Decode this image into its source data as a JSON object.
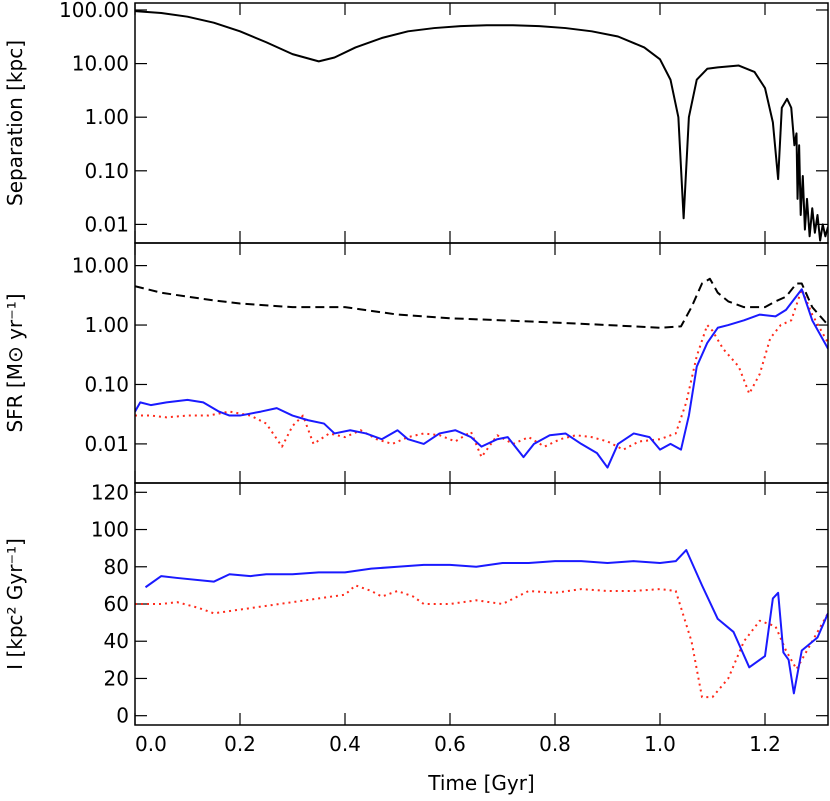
{
  "chart_data": [
    {
      "type": "line",
      "y_label": "Separation [kpc]",
      "ylog": true,
      "xlim": [
        0,
        1.32
      ],
      "xticks": [
        0,
        0.2,
        0.4,
        0.6,
        0.8,
        1,
        1.2
      ],
      "ylim": [
        0.0045,
        135
      ],
      "yticks": [
        {
          "value": 100,
          "label": "100.00"
        },
        {
          "value": 10,
          "label": "10.00"
        },
        {
          "value": 1,
          "label": "1.00"
        },
        {
          "value": 0.1,
          "label": "0.10"
        },
        {
          "value": 0.01,
          "label": "0.01"
        }
      ],
      "series": [
        {
          "color": "#000000",
          "dash": "solid",
          "x": [
            0,
            0.05,
            0.1,
            0.15,
            0.2,
            0.25,
            0.3,
            0.35,
            0.38,
            0.42,
            0.47,
            0.52,
            0.57,
            0.62,
            0.67,
            0.72,
            0.77,
            0.82,
            0.87,
            0.92,
            0.97,
            1.0,
            1.02,
            1.035,
            1.045,
            1.055,
            1.07,
            1.09,
            1.11,
            1.15,
            1.18,
            1.2,
            1.215,
            1.225,
            1.232,
            1.242,
            1.25,
            1.256,
            1.26,
            1.262,
            1.265,
            1.268,
            1.272,
            1.276,
            1.28,
            1.285,
            1.29,
            1.295,
            1.3,
            1.305,
            1.31,
            1.315,
            1.32
          ],
          "values": [
            95,
            88,
            75,
            58,
            40,
            25,
            15,
            11,
            13,
            20,
            30,
            40,
            46,
            50,
            52,
            52,
            50,
            46,
            40,
            32,
            20,
            12,
            5,
            1,
            0.013,
            1,
            5,
            8,
            8.5,
            9.2,
            7,
            3.5,
            0.8,
            0.07,
            1.5,
            2.2,
            1.5,
            0.3,
            0.5,
            0.03,
            0.3,
            0.015,
            0.08,
            0.008,
            0.03,
            0.006,
            0.02,
            0.007,
            0.015,
            0.005,
            0.01,
            0.006,
            0.009
          ]
        }
      ]
    },
    {
      "type": "line",
      "y_label": "SFR [M⊙ yr⁻¹]",
      "ylog": true,
      "xlim": [
        0,
        1.32
      ],
      "xticks": [
        0,
        0.2,
        0.4,
        0.6,
        0.8,
        1,
        1.2
      ],
      "ylim": [
        0.0022,
        24
      ],
      "yticks": [
        {
          "value": 10,
          "label": "10.00"
        },
        {
          "value": 1,
          "label": "1.00"
        },
        {
          "value": 0.1,
          "label": "0.10"
        },
        {
          "value": 0.01,
          "label": "0.01"
        }
      ],
      "series": [
        {
          "color": "#000000",
          "dash": "dashed",
          "x": [
            0,
            0.05,
            0.1,
            0.15,
            0.2,
            0.3,
            0.4,
            0.5,
            0.6,
            0.7,
            0.8,
            0.9,
            1.0,
            1.04,
            1.06,
            1.08,
            1.095,
            1.11,
            1.13,
            1.16,
            1.2,
            1.22,
            1.24,
            1.26,
            1.27,
            1.29,
            1.32
          ],
          "values": [
            4.5,
            3.5,
            3,
            2.6,
            2.3,
            2,
            2,
            1.5,
            1.3,
            1.2,
            1.1,
            1.0,
            0.9,
            0.95,
            2,
            5,
            6,
            3.5,
            2.5,
            2,
            2,
            2.5,
            3,
            5,
            5,
            2,
            1
          ]
        },
        {
          "color": "#ff2a1a",
          "dash": "dotted",
          "x": [
            0,
            0.03,
            0.06,
            0.1,
            0.14,
            0.18,
            0.22,
            0.25,
            0.28,
            0.3,
            0.32,
            0.34,
            0.37,
            0.4,
            0.43,
            0.46,
            0.49,
            0.52,
            0.55,
            0.58,
            0.61,
            0.64,
            0.66,
            0.69,
            0.72,
            0.75,
            0.78,
            0.81,
            0.84,
            0.87,
            0.9,
            0.93,
            0.96,
            1.0,
            1.03,
            1.05,
            1.07,
            1.09,
            1.1,
            1.12,
            1.15,
            1.17,
            1.19,
            1.21,
            1.23,
            1.25,
            1.27,
            1.29,
            1.32
          ],
          "values": [
            0.03,
            0.03,
            0.028,
            0.03,
            0.03,
            0.035,
            0.03,
            0.022,
            0.009,
            0.02,
            0.03,
            0.01,
            0.015,
            0.013,
            0.017,
            0.012,
            0.01,
            0.013,
            0.015,
            0.014,
            0.011,
            0.016,
            0.006,
            0.014,
            0.01,
            0.013,
            0.009,
            0.012,
            0.014,
            0.013,
            0.011,
            0.008,
            0.011,
            0.012,
            0.015,
            0.05,
            0.3,
            1.0,
            0.8,
            0.4,
            0.2,
            0.07,
            0.15,
            0.6,
            1.0,
            1.2,
            4,
            1.5,
            0.5
          ]
        },
        {
          "color": "#1a1aff",
          "dash": "solid",
          "x": [
            0,
            0.01,
            0.03,
            0.06,
            0.1,
            0.13,
            0.16,
            0.18,
            0.2,
            0.24,
            0.27,
            0.3,
            0.33,
            0.36,
            0.38,
            0.41,
            0.44,
            0.47,
            0.5,
            0.52,
            0.55,
            0.58,
            0.61,
            0.64,
            0.66,
            0.69,
            0.71,
            0.74,
            0.76,
            0.79,
            0.82,
            0.85,
            0.88,
            0.9,
            0.92,
            0.95,
            0.98,
            1.0,
            1.02,
            1.04,
            1.055,
            1.07,
            1.09,
            1.11,
            1.13,
            1.16,
            1.19,
            1.22,
            1.24,
            1.27,
            1.29,
            1.32
          ],
          "values": [
            0.035,
            0.05,
            0.045,
            0.05,
            0.055,
            0.05,
            0.035,
            0.03,
            0.03,
            0.035,
            0.04,
            0.03,
            0.025,
            0.022,
            0.015,
            0.017,
            0.015,
            0.012,
            0.017,
            0.012,
            0.01,
            0.015,
            0.017,
            0.013,
            0.009,
            0.012,
            0.013,
            0.006,
            0.01,
            0.014,
            0.015,
            0.01,
            0.007,
            0.004,
            0.01,
            0.015,
            0.013,
            0.008,
            0.01,
            0.008,
            0.03,
            0.2,
            0.5,
            0.9,
            1.0,
            1.2,
            1.5,
            1.4,
            1.8,
            4,
            1.2,
            0.4
          ]
        }
      ]
    },
    {
      "type": "line",
      "y_label": "I [kpc² Gyr⁻¹]",
      "x_label": "Time [Gyr]",
      "ylog": false,
      "xlim": [
        0,
        1.32
      ],
      "xticks": [
        {
          "value": 0,
          "label": "0.0"
        },
        0.2,
        0.4,
        0.6,
        0.8,
        {
          "value": 1,
          "label": "1.0"
        },
        1.2
      ],
      "ylim": [
        -5,
        125
      ],
      "yticks": [
        0,
        20,
        40,
        60,
        80,
        100,
        120
      ],
      "series": [
        {
          "color": "#ff2a1a",
          "dash": "dotted",
          "x": [
            0,
            0.05,
            0.08,
            0.12,
            0.15,
            0.2,
            0.25,
            0.3,
            0.35,
            0.4,
            0.42,
            0.45,
            0.47,
            0.5,
            0.53,
            0.55,
            0.6,
            0.65,
            0.7,
            0.75,
            0.8,
            0.85,
            0.9,
            0.95,
            1.0,
            1.03,
            1.06,
            1.08,
            1.1,
            1.13,
            1.16,
            1.19,
            1.22,
            1.24,
            1.26,
            1.29,
            1.32
          ],
          "values": [
            60,
            60,
            61,
            58,
            55,
            57,
            59,
            61,
            63,
            65,
            70,
            67,
            64,
            67,
            64,
            60,
            60,
            62,
            60,
            67,
            66,
            68,
            67,
            67,
            68,
            67,
            40,
            10,
            10,
            20,
            40,
            51,
            48,
            35,
            25,
            40,
            55
          ]
        },
        {
          "color": "#1a1aff",
          "dash": "solid",
          "x": [
            0.02,
            0.05,
            0.08,
            0.15,
            0.18,
            0.22,
            0.25,
            0.3,
            0.35,
            0.4,
            0.45,
            0.5,
            0.55,
            0.6,
            0.65,
            0.7,
            0.75,
            0.8,
            0.85,
            0.9,
            0.95,
            1.0,
            1.03,
            1.05,
            1.08,
            1.11,
            1.14,
            1.17,
            1.2,
            1.215,
            1.225,
            1.235,
            1.245,
            1.255,
            1.27,
            1.3,
            1.32
          ],
          "values": [
            69,
            75,
            74,
            72,
            76,
            75,
            76,
            76,
            77,
            77,
            79,
            80,
            81,
            81,
            80,
            82,
            82,
            83,
            83,
            82,
            83,
            82,
            83,
            89,
            70,
            52,
            45,
            26,
            32,
            63,
            66,
            34,
            30,
            12,
            35,
            42,
            55
          ]
        }
      ]
    }
  ]
}
